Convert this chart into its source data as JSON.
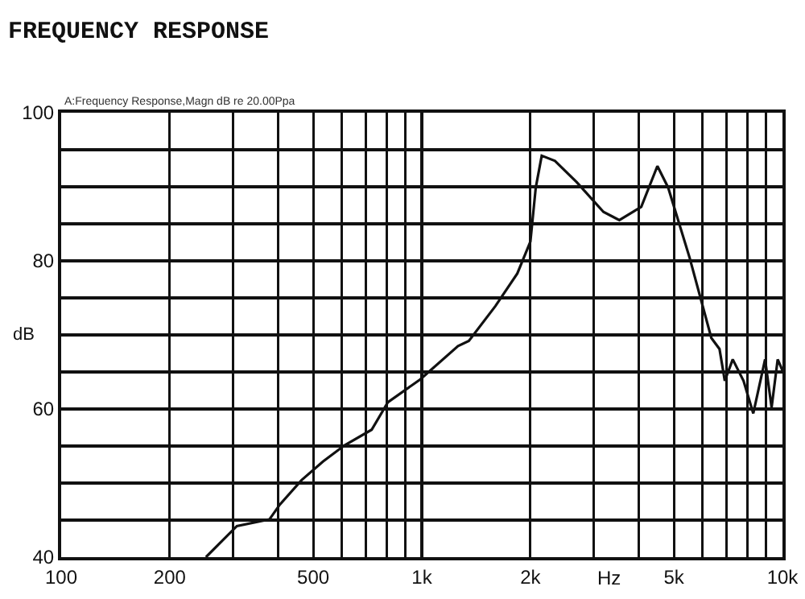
{
  "chart_data": {
    "type": "line",
    "title": "FREQUENCY RESPONSE",
    "annotations": [
      "A:Frequency Response,Magn dB re 20.00Ppa"
    ],
    "xlabel": "Hz",
    "ylabel": "dB",
    "log": "x",
    "grid": true,
    "marker": "none",
    "line_style": "solid",
    "xlim": [
      100,
      10000
    ],
    "ylim": [
      40,
      100
    ],
    "xticks": [
      100,
      200,
      500,
      {
        "value": 1000,
        "label": "1k"
      },
      {
        "value": 2000,
        "label": "2k"
      },
      {
        "value": 5000,
        "label": "5k"
      },
      {
        "value": 10000,
        "label": "10k"
      }
    ],
    "yticks": [
      40,
      60,
      80,
      100
    ],
    "series": [
      {
        "color": "#111111",
        "x": [
          252,
          307,
          378,
          404,
          464,
          532,
          611,
          726,
          805,
          990,
          1260,
          1350,
          1600,
          1840,
          2000,
          2070,
          2150,
          2340,
          2690,
          3190,
          3530,
          4060,
          4500,
          4820,
          5530,
          6350,
          6690,
          6920,
          7280,
          7800,
          8300,
          8950,
          9330,
          9700,
          10000
        ],
        "values": [
          40,
          44.2,
          45.1,
          47.1,
          50.4,
          52.9,
          55.1,
          57.2,
          60.9,
          64,
          68.5,
          69.2,
          73.9,
          78.3,
          82.6,
          89.9,
          94.2,
          93.5,
          90.6,
          86.6,
          85.5,
          87.3,
          92.8,
          89.9,
          80.4,
          69.6,
          68.1,
          63.8,
          66.7,
          63.8,
          59.4,
          66.7,
          60.2,
          66.7,
          65.2
        ]
      }
    ]
  }
}
